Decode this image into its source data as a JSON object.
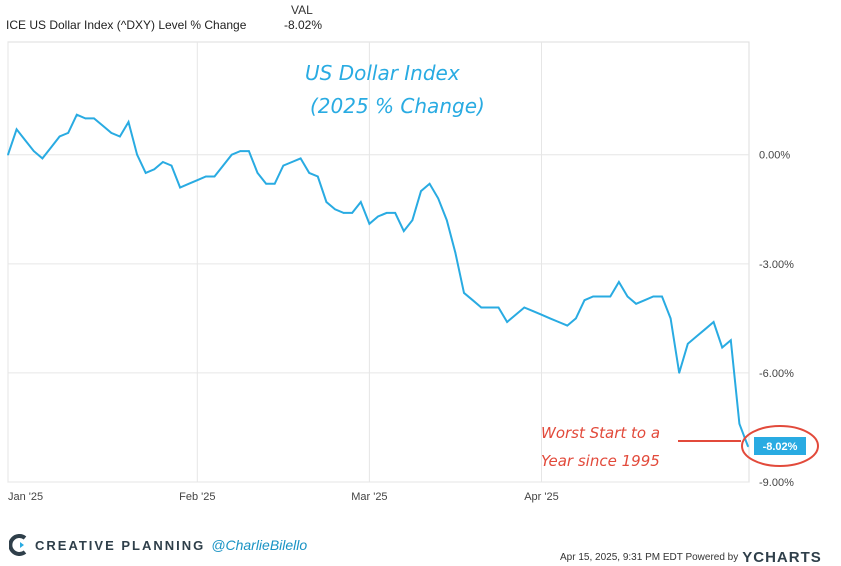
{
  "legend": {
    "header": "VAL",
    "series_name": "ICE US Dollar Index (^DXY) Level % Change",
    "series_value": "-8.02%"
  },
  "chart_data": {
    "type": "line",
    "title": "US Dollar Index",
    "subtitle": "(2025 % Change)",
    "x_ticks": [
      "Jan '25",
      "Feb '25",
      "Mar '25",
      "Apr '25"
    ],
    "y_ticks": [
      "0.00%",
      "-3.00%",
      "-6.00%",
      "-9.00%"
    ],
    "ylim": [
      -9.0,
      3.1
    ],
    "grid": true,
    "series": [
      {
        "color": "#29abe2",
        "values": [
          0.0,
          0.7,
          0.4,
          0.1,
          -0.1,
          0.2,
          0.5,
          0.6,
          1.1,
          1.0,
          1.0,
          0.8,
          0.6,
          0.5,
          0.9,
          0.0,
          -0.5,
          -0.4,
          -0.2,
          -0.3,
          -0.9,
          -0.8,
          -0.7,
          -0.6,
          -0.6,
          -0.3,
          0.0,
          0.1,
          0.1,
          -0.5,
          -0.8,
          -0.8,
          -0.3,
          -0.2,
          -0.1,
          -0.5,
          -0.6,
          -1.3,
          -1.5,
          -1.6,
          -1.6,
          -1.3,
          -1.9,
          -1.7,
          -1.6,
          -1.6,
          -2.1,
          -1.8,
          -1.0,
          -0.8,
          -1.2,
          -1.8,
          -2.7,
          -3.8,
          -4.0,
          -4.2,
          -4.2,
          -4.2,
          -4.6,
          -4.4,
          -4.2,
          -4.3,
          -4.4,
          -4.5,
          -4.6,
          -4.7,
          -4.5,
          -4.0,
          -3.9,
          -3.9,
          -3.9,
          -3.5,
          -3.9,
          -4.1,
          -4.0,
          -3.9,
          -3.9,
          -4.5,
          -6.0,
          -5.2,
          -5.0,
          -4.8,
          -4.6,
          -5.3,
          -5.1,
          -7.4,
          -8.02
        ]
      }
    ],
    "end_label": "-8.02%",
    "annotation": [
      "Worst Start to a",
      "Year since 1995"
    ]
  },
  "brand": {
    "logo": "CREATIVE PLANNING",
    "handle": "@CharlieBilello"
  },
  "footer": {
    "timestamp": "Apr 15, 2025, 9:31 PM EDT Powered by",
    "provider": "YCHARTS"
  },
  "colors": {
    "line": "#29abe2",
    "title": "#29abe2",
    "annotation": "#e24a3b",
    "grid": "#e6e6e6"
  }
}
